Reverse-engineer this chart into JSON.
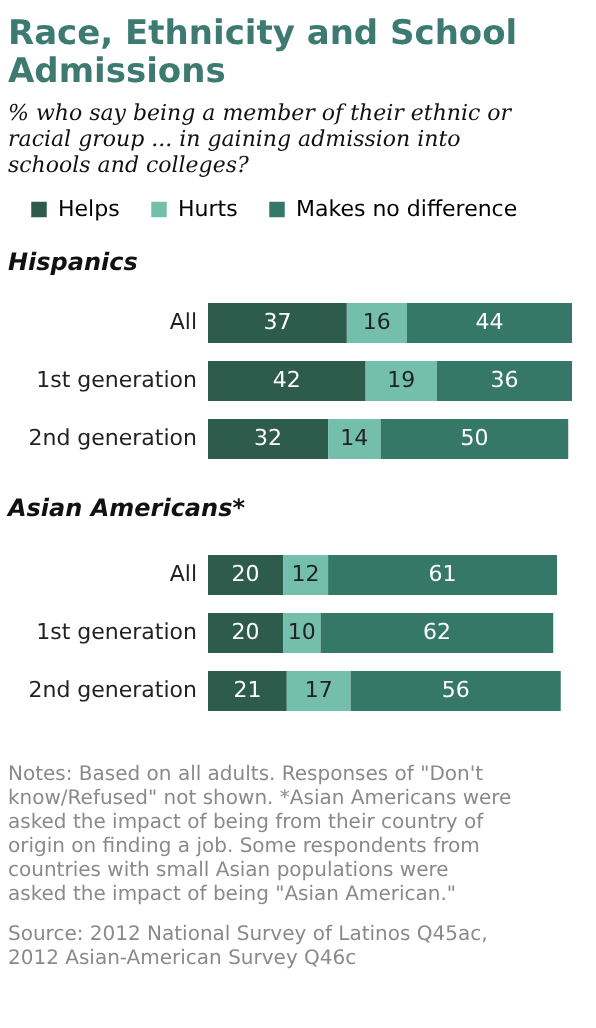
{
  "chart_data": [
    {
      "type": "bar",
      "orientation": "horizontal",
      "stacked": true,
      "data_labels": true,
      "legend": "top",
      "grid": false,
      "title": "Race, Ethnicity and School Admissions",
      "subtitle": "% who say being a member of their ethnic or racial group ... in gaining admission into schools and colleges?",
      "annotations": [
        "Hispanics"
      ],
      "categories": [
        "All",
        "1st generation",
        "2nd generation"
      ],
      "series": [
        {
          "name": "Helps",
          "color": "#2d5b4c",
          "values": [
            37,
            42,
            32
          ]
        },
        {
          "name": "Hurts",
          "color": "#74bfac",
          "values": [
            16,
            19,
            14
          ]
        },
        {
          "name": "Makes no difference",
          "color": "#367867",
          "values": [
            44,
            36,
            50
          ]
        }
      ]
    },
    {
      "type": "bar",
      "orientation": "horizontal",
      "stacked": true,
      "data_labels": true,
      "legend": false,
      "grid": false,
      "title": "Asian Americans*",
      "annotations": [
        "Notes: Based on all adults. Responses of \"Don't know/Refused\" not shown. *Asian Americans were asked the impact of being from their country of origin on finding a job. Some respondents from countries with small Asian populations were asked the impact of being \"Asian American.\"",
        "Source: 2012 National Survey of Latinos Q45ac, 2012 Asian-American Survey Q46c"
      ],
      "categories": [
        "All",
        "1st generation",
        "2nd generation"
      ],
      "series": [
        {
          "color": "#2d5b4c",
          "values": [
            20,
            20,
            21
          ]
        },
        {
          "color": "#74bfac",
          "values": [
            12,
            10,
            17
          ]
        },
        {
          "color": "#367867",
          "values": [
            61,
            62,
            56
          ]
        }
      ]
    }
  ]
}
